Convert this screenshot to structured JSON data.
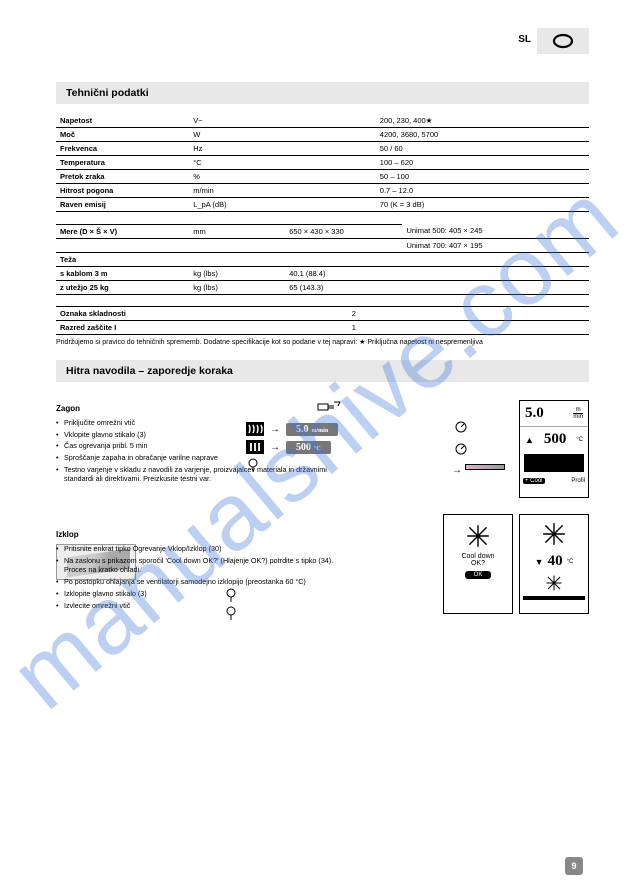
{
  "language": {
    "code": "SL",
    "label": "SL"
  },
  "section_tech": {
    "title": "Tehnični podatki",
    "rows": [
      [
        "Napetost",
        "V~",
        "200, 230, 400★"
      ],
      [
        "Moč",
        "W",
        "4200, 3680, 5700"
      ],
      [
        "Frekvenca",
        "Hz",
        "50 / 60"
      ],
      [
        "Temperatura",
        "°C",
        "100 – 620"
      ],
      [
        "Pretok zraka",
        "%",
        "50 – 100"
      ],
      [
        "Hitrost pogona",
        "m/min",
        "0.7 – 12.0"
      ],
      [
        "Raven emisij",
        "L_pA (dB)",
        "70 (K = 3 dB)"
      ]
    ],
    "rows2": [
      [
        "Mere (D × Š × V)",
        "mm",
        "650 × 430 × 330",
        "Unimat 500: 405 × 245"
      ],
      [
        "",
        "",
        "",
        "Unimat 700: 407 × 195"
      ],
      [
        "Teža",
        "",
        "",
        ""
      ],
      [
        "s kablom 3 m",
        "kg (lbs)",
        "40.1 (88.4)",
        ""
      ],
      [
        "z utežjo 25 kg",
        "kg (lbs)",
        "65 (143.3)",
        ""
      ]
    ],
    "rows3": [
      [
        "Oznaka skladnosti",
        "",
        "2",
        ""
      ],
      [
        "Razred zaščite I",
        "",
        "1",
        ""
      ]
    ],
    "footnote": "Pridržujemo si pravico do tehničnih sprememb. Dodatne specifikacije kot so podane v tej napravi: ★ Priključna napetost ni nespremenljiva"
  },
  "section_quick": {
    "title": "Hitra navodila – zaporedje koraka",
    "start": {
      "head": "Zagon",
      "steps": [
        "Priključite omrežni vtič",
        "Vklopite glavno stikalo (3)",
        "Čas ogrevanja pribl. 5 min",
        "Sproščanje zapaha in obračanje varilne naprave",
        "Testno varjenje v skladu z navodili za varjenje, proizvajalcev materiala in državnimi standardi ali direktivami. Preizkusite testni var."
      ]
    },
    "stop": {
      "head": "Izklop",
      "steps": [
        "Pritisnite enkrat tipko Ogrevanje Vklop/Izklop (30)",
        "Na zaslonu s prikazom sporočil 'Cool down OK?' (Hlajenje OK?) potrdite s tipko (34). Proces na kratko ohladi.",
        "Po postopku ohlajanja se ventilatorji samodejno izklopijo (preostanka 60 °C)",
        "Izklopite glavno stikalo (3)",
        "Izvlecite omrežni vtič"
      ]
    }
  },
  "mid": {
    "speed_val": "5.0",
    "speed_unit_top": "m",
    "speed_unit_bot": "min",
    "temp_val": "500",
    "temp_unit": "°C"
  },
  "panel1": {
    "speed": "5.0",
    "speed_unit_top": "m",
    "speed_unit_bot": "min",
    "temp": "500",
    "temp_unit": "°C",
    "foot_left": "+ Cool",
    "foot_right": "Profil"
  },
  "panel2": {
    "line1": "Cool down",
    "line2": "OK?",
    "btn": "OK"
  },
  "panel3": {
    "temp": "40",
    "temp_unit": "°C"
  },
  "page_number": "9"
}
